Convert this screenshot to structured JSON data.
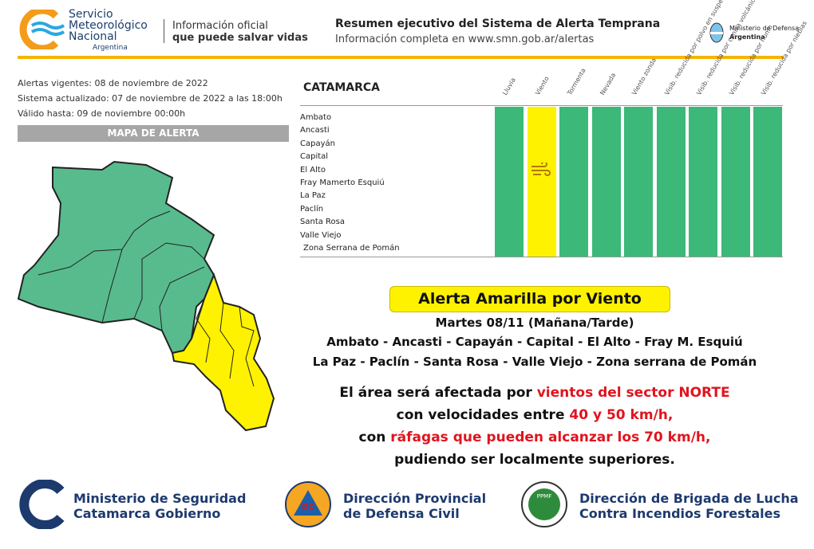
{
  "header": {
    "org": [
      "Servicio",
      "Meteorológico",
      "Nacional",
      "Argentina"
    ],
    "tagline": [
      "Información oficial",
      "que puede salvar vidas"
    ],
    "title": "Resumen ejecutivo del Sistema de Alerta Temprana",
    "subtitle": "Información completa en www.smn.gob.ar/alertas",
    "ministry": [
      "Ministerio de Defensa",
      "Argentina"
    ]
  },
  "info": [
    "Alertas vigentes: 08 de noviembre de 2022",
    "Sistema actualizado: 07 de noviembre de 2022 a las 18:00h",
    "Válido hasta: 09 de noviembre 00:00h"
  ],
  "map_title": "MAPA DE ALERTA",
  "table": {
    "province": "CATAMARCA",
    "columns": [
      {
        "label": "Lluvia",
        "color": "#3cb878"
      },
      {
        "label": "Viento",
        "color": "#fff200"
      },
      {
        "label": "Tormenta",
        "color": "#3cb878"
      },
      {
        "label": "Nevada",
        "color": "#3cb878"
      },
      {
        "label": "Viento zonda",
        "color": "#3cb878"
      },
      {
        "label": "Visib. reducida por polvo en suspensión",
        "color": "#3cb878"
      },
      {
        "label": "Visib. reducida por ceniza volcánica",
        "color": "#3cb878"
      },
      {
        "label": "Visib. reducida por humo",
        "color": "#3cb878"
      },
      {
        "label": "Visib. reducida por nieblas",
        "color": "#3cb878"
      }
    ],
    "rows": [
      "Ambato",
      "Ancasti",
      "Capayán",
      "Capital",
      "El Alto",
      "Fray Mamerto Esquiú",
      "La Paz",
      "Paclín",
      "Santa Rosa",
      "Valle Viejo",
      "Zona Serrana de Pomán"
    ]
  },
  "alert": {
    "title": "Alerta Amarilla por Viento",
    "date": "Martes 08/11 (Mañana/Tarde)",
    "areas": [
      "Ambato - Ancasti - Capayán - Capital - El Alto - Fray M. Esquiú",
      "La Paz - Paclín - Santa Rosa - Valle Viejo - Zona serrana de Pomán"
    ],
    "message": [
      [
        "El área será afectada por ",
        "vientos del sector NORTE"
      ],
      [
        "con velocidades entre ",
        "40 y 50 km/h,"
      ],
      [
        "con ",
        "ráfagas que pueden alcanzar los 70 km/h,"
      ],
      [
        "pudiendo ser localmente superiores."
      ]
    ]
  },
  "footer": [
    {
      "lines": [
        "Ministerio de Seguridad",
        "Catamarca Gobierno"
      ]
    },
    {
      "badge": "DC",
      "lines": [
        "Dirección Provincial",
        "de Defensa Civil"
      ]
    },
    {
      "badge": "PPMF",
      "lines": [
        "Dirección de Brigada de Lucha",
        "Contra Incendios Forestales"
      ]
    }
  ]
}
